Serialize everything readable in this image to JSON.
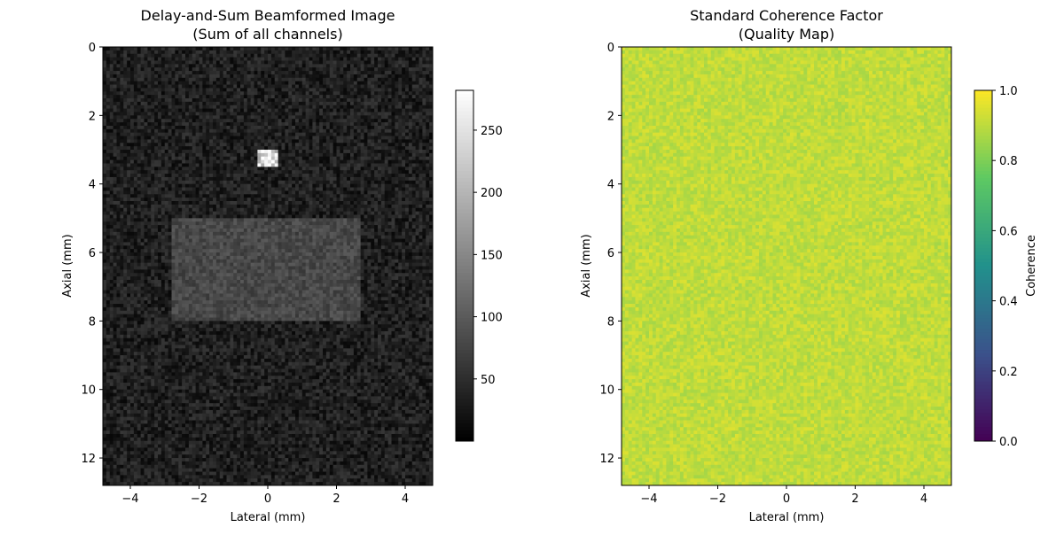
{
  "chart_data": [
    {
      "type": "heatmap",
      "title": "Delay-and-Sum Beamformed Image\n(Sum of all channels)",
      "xlabel": "Lateral (mm)",
      "ylabel": "Axial (mm)",
      "xlim": [
        -4.8,
        4.8
      ],
      "ylim": [
        12.8,
        0
      ],
      "xticks": [
        -4,
        -2,
        0,
        2,
        4
      ],
      "xtick_labels": [
        "−4",
        "−2",
        "0",
        "2",
        "4"
      ],
      "yticks": [
        0,
        2,
        4,
        6,
        8,
        10,
        12
      ],
      "ytick_labels": [
        "0",
        "2",
        "4",
        "6",
        "8",
        "10",
        "12"
      ],
      "colormap": "gray",
      "grid_resolution": [
        96,
        128
      ],
      "background_mean": 35,
      "regions": [
        {
          "kind": "bright point target",
          "x_range": [
            -0.3,
            0.25
          ],
          "y_range": [
            3.0,
            3.5
          ],
          "mean": 235
        },
        {
          "kind": "hyperechoic rectangle",
          "x_range": [
            -2.8,
            2.7
          ],
          "y_range": [
            5.0,
            8.0
          ],
          "mean": 80
        }
      ],
      "colorbar": {
        "label": "",
        "min": 0,
        "max": 282,
        "ticks": [
          50,
          100,
          150,
          200,
          250
        ],
        "tick_labels": [
          "50",
          "100",
          "150",
          "200",
          "250"
        ]
      }
    },
    {
      "type": "heatmap",
      "title": "Standard Coherence Factor\n(Quality Map)",
      "xlabel": "Lateral (mm)",
      "ylabel": "Axial (mm)",
      "xlim": [
        -4.8,
        4.8
      ],
      "ylim": [
        12.8,
        0
      ],
      "xticks": [
        -4,
        -2,
        0,
        2,
        4
      ],
      "xtick_labels": [
        "−4",
        "−2",
        "0",
        "2",
        "4"
      ],
      "yticks": [
        0,
        2,
        4,
        6,
        8,
        10,
        12
      ],
      "ytick_labels": [
        "0",
        "2",
        "4",
        "6",
        "8",
        "10",
        "12"
      ],
      "colormap": "viridis",
      "grid_resolution": [
        96,
        128
      ],
      "value_mean": 0.9,
      "value_range": [
        0.86,
        0.95
      ],
      "colorbar": {
        "label": "Coherence",
        "min": 0,
        "max": 1,
        "ticks": [
          0,
          0.2,
          0.4,
          0.6,
          0.8,
          1.0
        ],
        "tick_labels": [
          "0.0",
          "0.2",
          "0.4",
          "0.6",
          "0.8",
          "1.0"
        ]
      }
    }
  ]
}
